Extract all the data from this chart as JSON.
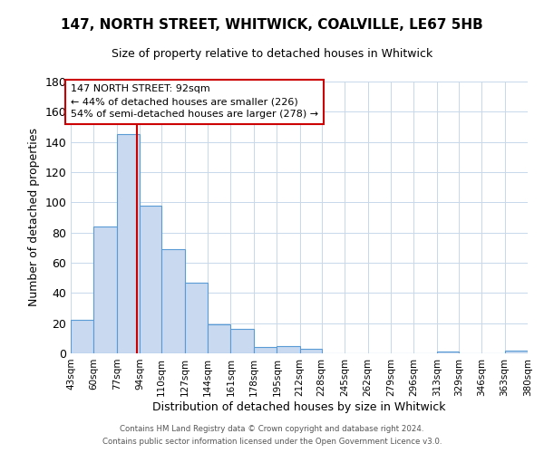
{
  "title": "147, NORTH STREET, WHITWICK, COALVILLE, LE67 5HB",
  "subtitle": "Size of property relative to detached houses in Whitwick",
  "xlabel": "Distribution of detached houses by size in Whitwick",
  "ylabel": "Number of detached properties",
  "bin_edges": [
    43,
    60,
    77,
    94,
    110,
    127,
    144,
    161,
    178,
    195,
    212,
    228,
    245,
    262,
    279,
    296,
    313,
    329,
    346,
    363,
    380
  ],
  "bar_heights": [
    22,
    84,
    145,
    98,
    69,
    47,
    19,
    16,
    4,
    5,
    3,
    0,
    0,
    0,
    0,
    0,
    1,
    0,
    0,
    2
  ],
  "bar_color": "#c9d9f0",
  "bar_edgecolor": "#5b9bd5",
  "property_line_x": 92,
  "property_line_color": "#cc0000",
  "ylim": [
    0,
    180
  ],
  "yticks": [
    0,
    20,
    40,
    60,
    80,
    100,
    120,
    140,
    160,
    180
  ],
  "annotation_title": "147 NORTH STREET: 92sqm",
  "annotation_line1": "← 44% of detached houses are smaller (226)",
  "annotation_line2": "54% of semi-detached houses are larger (278) →",
  "footer1": "Contains HM Land Registry data © Crown copyright and database right 2024.",
  "footer2": "Contains public sector information licensed under the Open Government Licence v3.0.",
  "background_color": "#ffffff",
  "grid_color": "#c8d8ec"
}
